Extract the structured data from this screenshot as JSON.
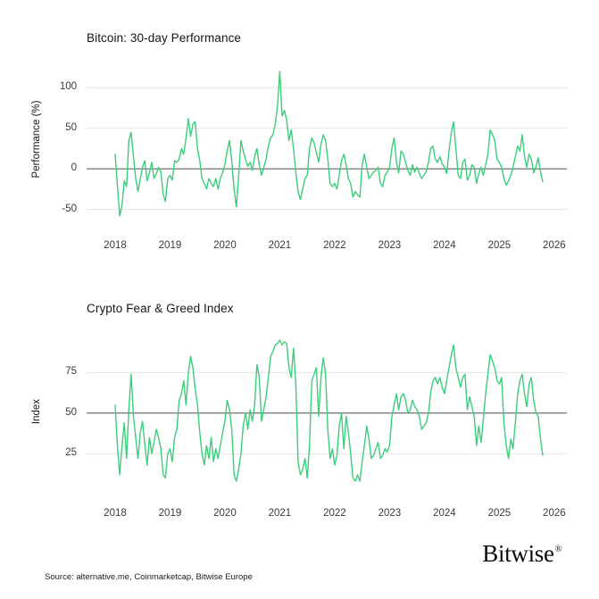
{
  "branding": {
    "logo_text": "Bitwise",
    "registered_mark": "®"
  },
  "footer": {
    "source_text": "Source: alternative.me, Coinmarketcap, Bitwise Europe"
  },
  "chart_data": [
    {
      "type": "line",
      "title": "Bitcoin: 30-day Performance",
      "ylabel": "Performance (%)",
      "xlabel": "",
      "legend": null,
      "grid": "horizontal",
      "line_color": "#3CCE7C",
      "grid_color": "#e4e4e4",
      "baseline_color": "#4f4f4f",
      "baseline_value": 0,
      "ylim": [
        -78,
        131
      ],
      "xlim": [
        2017.48,
        2026.23
      ],
      "y_ticks": [
        {
          "label": "100",
          "value": 100
        },
        {
          "label": "50",
          "value": 50
        },
        {
          "label": "0",
          "value": 0
        },
        {
          "label": "-50",
          "value": -50
        }
      ],
      "x_ticks": [
        {
          "label": "2018",
          "value": 2018
        },
        {
          "label": "2019",
          "value": 2019
        },
        {
          "label": "2020",
          "value": 2020
        },
        {
          "label": "2021",
          "value": 2021
        },
        {
          "label": "2022",
          "value": 2022
        },
        {
          "label": "2023",
          "value": 2023
        },
        {
          "label": "2024",
          "value": 2024
        },
        {
          "label": "2025",
          "value": 2025
        },
        {
          "label": "2026",
          "value": 2026
        }
      ],
      "x_start": 2018.0,
      "x_step": 0.0416667,
      "values": [
        18,
        -20,
        -58,
        -45,
        -15,
        -22,
        35,
        45,
        15,
        -12,
        -28,
        -12,
        2,
        10,
        -15,
        -5,
        8,
        -12,
        -6,
        2,
        -4,
        -32,
        -40,
        -12,
        -8,
        -14,
        10,
        8,
        12,
        25,
        18,
        38,
        62,
        40,
        55,
        58,
        25,
        10,
        -12,
        -18,
        -25,
        -12,
        -18,
        -22,
        -12,
        -25,
        -12,
        -5,
        5,
        22,
        35,
        10,
        -25,
        -47,
        -10,
        35,
        22,
        12,
        3,
        8,
        -2,
        15,
        25,
        5,
        -8,
        2,
        12,
        28,
        38,
        42,
        55,
        78,
        120,
        65,
        72,
        60,
        35,
        48,
        25,
        -5,
        -28,
        -38,
        -25,
        -12,
        -8,
        25,
        38,
        32,
        20,
        8,
        30,
        42,
        35,
        12,
        -18,
        -22,
        -18,
        -25,
        -8,
        10,
        18,
        5,
        -12,
        -18,
        -35,
        -28,
        -32,
        -35,
        5,
        18,
        2,
        -12,
        -8,
        -4,
        -2,
        2,
        -18,
        -22,
        -8,
        -4,
        2,
        25,
        38,
        8,
        -5,
        22,
        18,
        8,
        -2,
        -8,
        5,
        -4,
        2,
        -6,
        -12,
        -8,
        -4,
        8,
        25,
        28,
        12,
        8,
        15,
        6,
        2,
        -6,
        22,
        45,
        58,
        25,
        -8,
        -12,
        8,
        12,
        -14,
        -8,
        5,
        2,
        -18,
        -6,
        2,
        -8,
        5,
        18,
        48,
        42,
        35,
        12,
        8,
        2,
        -12,
        -20,
        -15,
        -8,
        2,
        15,
        28,
        22,
        42,
        15,
        2,
        18,
        12,
        -5,
        2,
        14,
        -4,
        -16
      ]
    },
    {
      "type": "line",
      "title": "Crypto Fear & Greed Index",
      "ylabel": "Index",
      "xlabel": "",
      "legend": null,
      "grid": "horizontal",
      "line_color": "#3CCE7C",
      "grid_color": "#e4e4e4",
      "baseline_color": "#4f4f4f",
      "baseline_value": 50,
      "ylim": [
        -3,
        100
      ],
      "xlim": [
        2017.48,
        2026.23
      ],
      "y_ticks": [
        {
          "label": "75",
          "value": 75
        },
        {
          "label": "50",
          "value": 50
        },
        {
          "label": "25",
          "value": 25
        }
      ],
      "x_ticks": [
        {
          "label": "2018",
          "value": 2018
        },
        {
          "label": "2019",
          "value": 2019
        },
        {
          "label": "2020",
          "value": 2020
        },
        {
          "label": "2021",
          "value": 2021
        },
        {
          "label": "2022",
          "value": 2022
        },
        {
          "label": "2023",
          "value": 2023
        },
        {
          "label": "2024",
          "value": 2024
        },
        {
          "label": "2025",
          "value": 2025
        },
        {
          "label": "2026",
          "value": 2026
        }
      ],
      "x_start": 2018.0,
      "x_step": 0.0416667,
      "values": [
        55,
        30,
        12,
        30,
        44,
        22,
        52,
        74,
        48,
        35,
        22,
        38,
        45,
        30,
        18,
        35,
        25,
        32,
        40,
        35,
        28,
        12,
        10,
        25,
        28,
        20,
        35,
        40,
        58,
        62,
        70,
        55,
        75,
        85,
        78,
        65,
        55,
        38,
        25,
        18,
        30,
        22,
        35,
        20,
        28,
        22,
        30,
        38,
        45,
        58,
        52,
        40,
        12,
        8,
        15,
        25,
        42,
        50,
        40,
        52,
        45,
        55,
        80,
        72,
        45,
        52,
        60,
        72,
        85,
        88,
        92,
        93,
        95,
        92,
        94,
        93,
        78,
        72,
        90,
        68,
        20,
        12,
        15,
        22,
        10,
        30,
        70,
        74,
        78,
        48,
        72,
        84,
        74,
        40,
        22,
        28,
        18,
        24,
        42,
        50,
        28,
        48,
        38,
        25,
        10,
        8,
        12,
        8,
        20,
        30,
        42,
        34,
        22,
        24,
        28,
        32,
        22,
        24,
        28,
        26,
        30,
        48,
        55,
        62,
        52,
        60,
        62,
        58,
        50,
        52,
        58,
        54,
        52,
        48,
        40,
        42,
        44,
        50,
        63,
        70,
        72,
        68,
        72,
        66,
        62,
        70,
        78,
        86,
        92,
        78,
        72,
        66,
        72,
        74,
        52,
        60,
        54,
        48,
        30,
        42,
        32,
        46,
        62,
        74,
        86,
        82,
        78,
        70,
        68,
        72,
        44,
        30,
        22,
        34,
        28,
        44,
        62,
        70,
        74,
        62,
        54,
        68,
        72,
        58,
        50,
        48,
        34,
        24
      ]
    }
  ]
}
